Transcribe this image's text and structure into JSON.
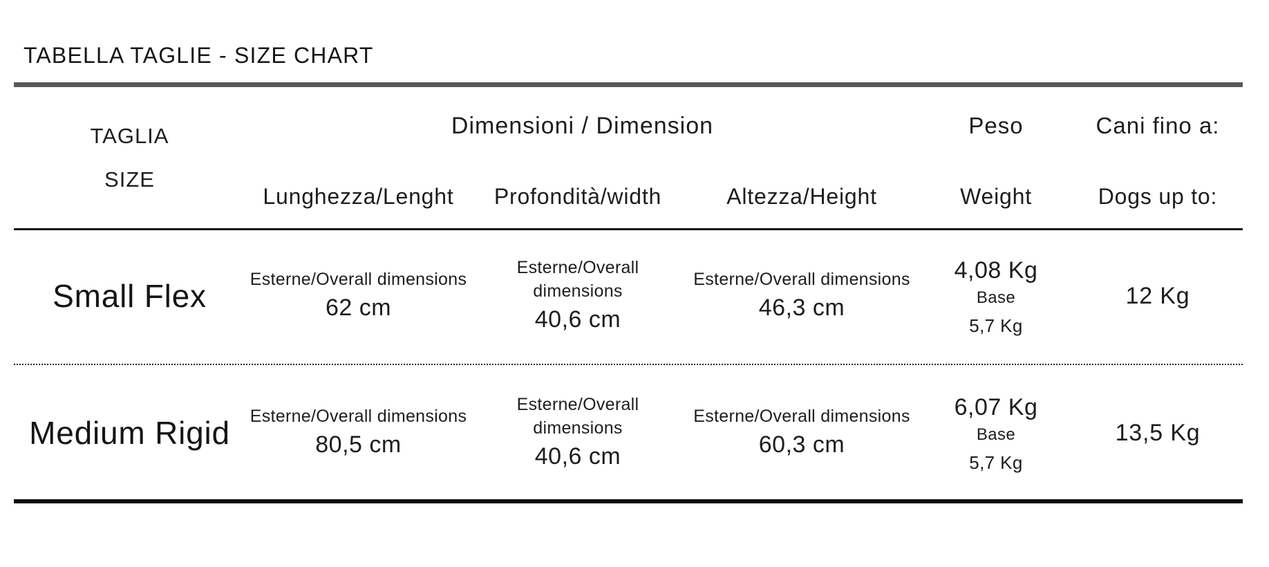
{
  "page": {
    "title": "TABELLA TAGLIE - SIZE CHART"
  },
  "table": {
    "header": {
      "size_col": {
        "line1": "TAGLIA",
        "line2": "SIZE"
      },
      "dimensions_group": "Dimensioni / Dimension",
      "length_col": "Lunghezza/Lenght",
      "depth_col": "Profondità/width",
      "height_col": "Altezza/Height",
      "weight_col": {
        "line1": "Peso",
        "line2": "Weight"
      },
      "dogs_col": {
        "line1": "Cani fino a:",
        "line2": "Dogs up to:"
      }
    },
    "rows": [
      {
        "size": "Small Flex",
        "length": {
          "label": "Esterne/Overall dimensions",
          "value": "62 cm"
        },
        "depth": {
          "label": "Esterne/Overall dimensions",
          "value": "40,6 cm"
        },
        "height": {
          "label": "Esterne/Overall dimensions",
          "value": "46,3 cm"
        },
        "weight": {
          "value": "4,08 Kg",
          "base_label": "Base",
          "base_value": "5,7 Kg"
        },
        "dogs_up_to": "12 Kg"
      },
      {
        "size": "Medium Rigid",
        "length": {
          "label": "Esterne/Overall dimensions",
          "value": "80,5 cm"
        },
        "depth": {
          "label": "Esterne/Overall dimensions",
          "value": "40,6 cm"
        },
        "height": {
          "label": "Esterne/Overall dimensions",
          "value": "60,3 cm"
        },
        "weight": {
          "value": "6,07 Kg",
          "base_label": "Base",
          "base_value": "5,7 Kg"
        },
        "dogs_up_to": "13,5 Kg"
      }
    ]
  },
  "colors": {
    "text": "#1d1d1d",
    "rule_gray": "#58595b",
    "rule_black": "#0b0b0b"
  }
}
